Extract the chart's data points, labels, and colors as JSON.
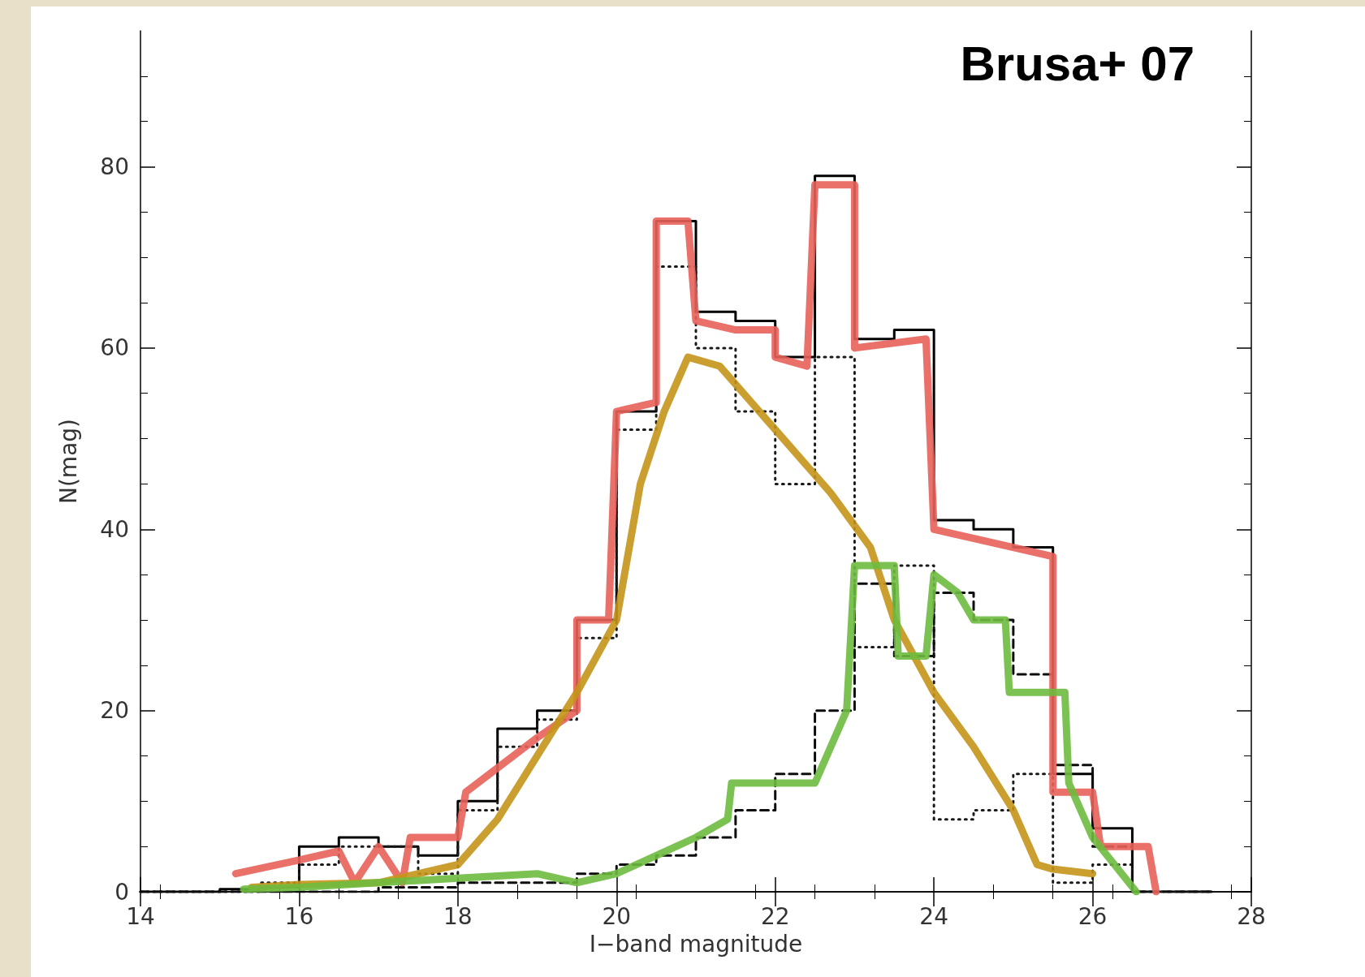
{
  "chart_data": {
    "type": "histogram",
    "xlabel": "I−band magnitude",
    "ylabel": "N(mag)",
    "annotations": [
      "Brusa+ 07"
    ],
    "bins": [
      14,
      14.5,
      15,
      15.5,
      16,
      16.5,
      17,
      17.5,
      18,
      18.5,
      19,
      19.5,
      20,
      20.5,
      21,
      21.5,
      22,
      22.5,
      23,
      23.5,
      24,
      24.5,
      25,
      25.5,
      26,
      26.5,
      27,
      27.5
    ],
    "series": [
      {
        "color": "#000000",
        "line_style": "solid",
        "values": [
          0,
          0,
          0.3,
          0.5,
          5,
          6,
          5,
          4,
          10,
          18,
          20,
          30,
          53,
          74,
          64,
          63,
          59,
          79,
          61,
          62,
          41,
          40,
          38,
          13,
          7,
          0,
          0
        ]
      },
      {
        "color": "#1a1a1a",
        "line_style": "dotted",
        "values": [
          0,
          0,
          0,
          1,
          3,
          5,
          5,
          2,
          9,
          16,
          19,
          28,
          51,
          69,
          60,
          53,
          45,
          59,
          27,
          36,
          8,
          9,
          13,
          1,
          3,
          0,
          0
        ]
      },
      {
        "color": "#0d0d0d",
        "line_style": "dashed",
        "values": [
          0,
          0,
          0,
          0,
          0,
          0,
          0.5,
          0.5,
          1,
          1,
          1,
          2,
          3,
          4,
          6,
          9,
          13,
          20,
          34,
          26,
          33,
          30,
          24,
          14,
          5,
          0,
          0
        ]
      },
      {
        "type": "line",
        "color": "#e8605a",
        "line_style": "solid",
        "x": [
          15.2,
          16,
          16.5,
          16.7,
          17,
          17.3,
          17.4,
          18,
          18.1,
          19,
          19.5,
          19.5,
          19.9,
          20,
          20.5,
          20.5,
          20.9,
          21,
          21.5,
          22,
          22,
          22.4,
          22.5,
          23,
          23,
          23.9,
          24,
          25.5,
          25.5,
          26,
          26.1,
          26.7,
          26.8
        ],
        "values": [
          2,
          3.5,
          4.5,
          1,
          5,
          1,
          6,
          6,
          11,
          17,
          20,
          30,
          30,
          53,
          54,
          74,
          74,
          63,
          62,
          62,
          59,
          58,
          78,
          78,
          60,
          61,
          40,
          37,
          11,
          11,
          5,
          5,
          0
        ]
      },
      {
        "type": "line",
        "color": "#c4951a",
        "line_style": "solid",
        "x": [
          15.4,
          16,
          17,
          18,
          18.5,
          19,
          19.5,
          20,
          20.3,
          20.6,
          20.9,
          21.3,
          21.7,
          22.2,
          22.7,
          23.2,
          23.5,
          24,
          24.5,
          25,
          25.3,
          25.5,
          26
        ],
        "values": [
          0.5,
          0.8,
          1,
          3,
          8,
          15,
          22,
          30,
          45,
          53,
          59,
          58,
          54,
          49,
          44,
          38,
          30,
          22,
          16,
          9,
          3,
          2.5,
          2
        ]
      },
      {
        "type": "line",
        "color": "#6dbb3f",
        "line_style": "solid",
        "x": [
          15.3,
          16,
          17,
          18,
          19,
          19.5,
          20,
          20.5,
          21,
          21.4,
          21.45,
          22,
          22.5,
          22.9,
          23,
          23.5,
          23.55,
          23.9,
          24,
          24.3,
          24.5,
          24.9,
          24.95,
          25.65,
          25.7,
          26,
          26.55
        ],
        "values": [
          0.3,
          0.5,
          1,
          1.5,
          2,
          1,
          2,
          4,
          6,
          8,
          12,
          12,
          12,
          20,
          36,
          36,
          26,
          26,
          35,
          33,
          30,
          30,
          22,
          22,
          12,
          6,
          0
        ]
      }
    ],
    "xlim": [
      14,
      28
    ],
    "xticks": [
      14,
      16,
      18,
      20,
      22,
      24,
      26,
      28
    ],
    "ylim": [
      0,
      95
    ],
    "yticks": [
      0,
      20,
      40,
      60,
      80
    ],
    "grid": false
  }
}
